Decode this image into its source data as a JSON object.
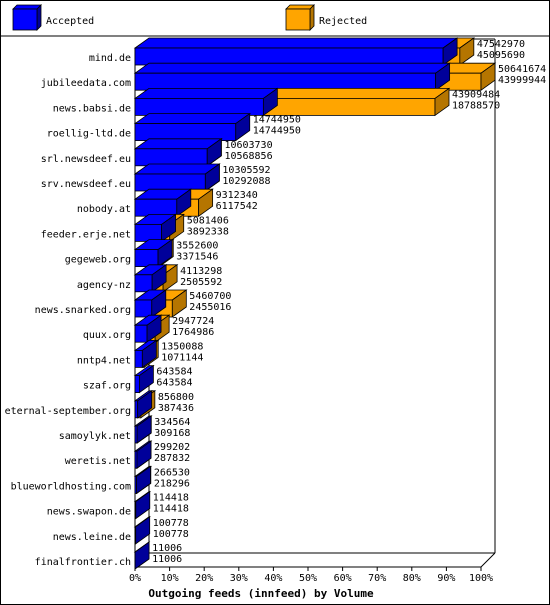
{
  "chart_data": {
    "type": "bar",
    "orientation": "horizontal",
    "stacking": "overlay",
    "style": "3d",
    "xlabel": "Outgoing feeds (innfeed) by Volume",
    "xlim": [
      0,
      100
    ],
    "x_unit": "%",
    "x_ticks": [
      "0%",
      "10%",
      "20%",
      "30%",
      "40%",
      "50%",
      "60%",
      "70%",
      "80%",
      "90%",
      "100%"
    ],
    "grid": false,
    "legend_position": "top",
    "categories": [
      "mind.de",
      "jubileedata.com",
      "news.babsi.de",
      "roellig-ltd.de",
      "srl.newsdeef.eu",
      "srv.newsdeef.eu",
      "nobody.at",
      "feeder.erje.net",
      "gegeweb.org",
      "agency-nz",
      "news.snarked.org",
      "quux.org",
      "nntp4.net",
      "szaf.org",
      "eternal-september.org",
      "samoylyk.net",
      "weretis.net",
      "blueworldhosting.com",
      "news.swapon.de",
      "news.leine.de",
      "finalfrontier.ch"
    ],
    "series": [
      {
        "name": "Rejected",
        "color": "#ffa500",
        "side_color": "#b57500",
        "values": [
          47542970,
          50641674,
          43909484,
          14744950,
          10603730,
          10305592,
          9312340,
          5081406,
          3552600,
          4113298,
          5460700,
          2947724,
          1350088,
          643584,
          856800,
          334564,
          299202,
          266530,
          114418,
          100778,
          11006
        ]
      },
      {
        "name": "Accepted",
        "color": "#0000ff",
        "side_color": "#00009a",
        "values": [
          45095690,
          43999944,
          18788570,
          14744950,
          10568856,
          10292088,
          6117542,
          3892338,
          3371546,
          2505592,
          2455016,
          1764986,
          1071144,
          643584,
          387436,
          309168,
          287832,
          218296,
          114418,
          100778,
          11006
        ]
      }
    ],
    "scale_max": 50641674
  }
}
